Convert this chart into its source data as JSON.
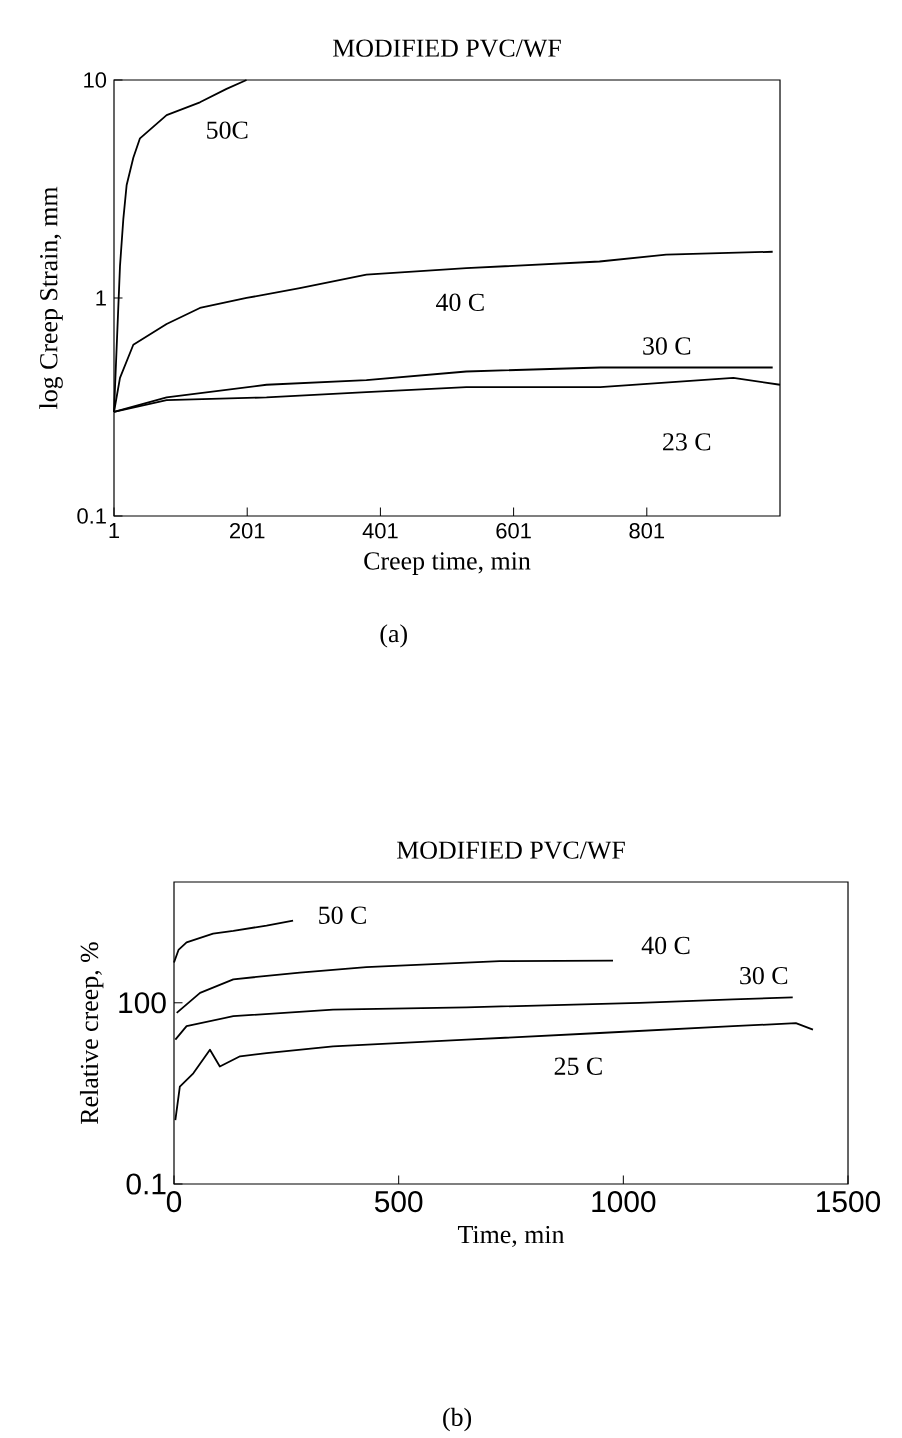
{
  "chart_data": [
    {
      "type": "line",
      "title": "MODIFIED PVC/WF",
      "xlabel": "Creep time, min",
      "ylabel": "log Creep Strain, mm",
      "log": "y",
      "xlim": [
        1,
        1001
      ],
      "ylim": [
        0.1,
        10
      ],
      "xticks": [
        1,
        201,
        401,
        601,
        801
      ],
      "yticks": [
        0.1,
        1,
        10
      ],
      "grid": false,
      "marker": "none",
      "line_style": "solid",
      "series": [
        {
          "color": "#000000",
          "x": [
            1,
            10,
            15,
            20,
            30,
            40,
            80,
            130,
            170,
            200
          ],
          "values": [
            0.3,
            1.4,
            2.3,
            3.3,
            4.4,
            5.4,
            6.9,
            7.9,
            9.1,
            10
          ]
        },
        {
          "color": "#000000",
          "x": [
            1,
            10,
            30,
            80,
            130,
            200,
            280,
            380,
            530,
            730,
            830,
            990
          ],
          "values": [
            0.3,
            0.43,
            0.61,
            0.76,
            0.9,
            1.0,
            1.11,
            1.28,
            1.37,
            1.47,
            1.58,
            1.63
          ]
        },
        {
          "color": "#000000",
          "x": [
            1,
            80,
            230,
            380,
            530,
            731,
            990
          ],
          "values": [
            0.3,
            0.35,
            0.4,
            0.42,
            0.46,
            0.48,
            0.48
          ]
        },
        {
          "color": "#000000",
          "x": [
            1,
            80,
            230,
            380,
            530,
            731,
            931,
            1001
          ],
          "values": [
            0.3,
            0.34,
            0.35,
            0.37,
            0.39,
            0.39,
            0.43,
            0.4
          ]
        }
      ],
      "annotations": [
        "50C",
        "40 C",
        "30 C",
        "23 C",
        "(a)"
      ]
    },
    {
      "type": "line",
      "title": "MODIFIED PVC/WF",
      "xlabel": "Time, min",
      "ylabel": "Relative creep, %",
      "log": "y",
      "xlim": [
        0,
        1500
      ],
      "ylim": [
        0.1,
        10000
      ],
      "xticks": [
        0,
        500,
        1000,
        1500
      ],
      "yticks": [
        0.1,
        100
      ],
      "grid": false,
      "marker": "none",
      "line_style": "solid",
      "series": [
        {
          "color": "#000000",
          "x": [
            0,
            10,
            28,
            87,
            132,
            206,
            265
          ],
          "values": [
            464,
            750,
            1000,
            1400,
            1550,
            1900,
            2300
          ]
        },
        {
          "color": "#000000",
          "x": [
            6,
            58,
            132,
            280,
            428,
            725,
            977
          ],
          "values": [
            68,
            146,
            245,
            316,
            389,
            490,
            500
          ]
        },
        {
          "color": "#000000",
          "x": [
            3,
            28,
            132,
            354,
            651,
            1036,
            1244,
            1377
          ],
          "values": [
            24.5,
            41,
            60,
            77,
            84,
            100,
            114,
            123
          ]
        },
        {
          "color": "#000000",
          "x": [
            3,
            13,
            43,
            80,
            102,
            147,
            206,
            354,
            651,
            947,
            1244,
            1384,
            1422
          ],
          "values": [
            1.14,
            4.1,
            6.8,
            16.7,
            8.8,
            13,
            14.7,
            19,
            24.5,
            31.6,
            41,
            46,
            36
          ]
        }
      ],
      "annotations": [
        "50 C",
        "40 C",
        "30 C",
        "25 C",
        "(b)"
      ]
    }
  ]
}
